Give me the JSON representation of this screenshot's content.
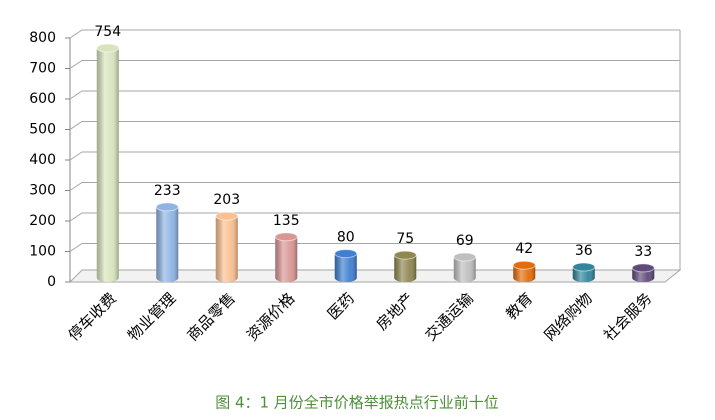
{
  "chart_data": {
    "type": "bar3d",
    "categories": [
      "停车收费",
      "物业管理",
      "商品零售",
      "资源价格",
      "医药",
      "房地产",
      "交通运输",
      "教育",
      "网络购物",
      "社会服务"
    ],
    "values": [
      754,
      233,
      203,
      135,
      80,
      75,
      69,
      42,
      36,
      33
    ],
    "colors": [
      "#d7e4bd",
      "#8eb4e3",
      "#fac090",
      "#d99694",
      "#3f7fd0",
      "#8f8650",
      "#bfbfbf",
      "#e46c0a",
      "#31859c",
      "#604a7b"
    ],
    "ylim": [
      0,
      800
    ],
    "yticks": [
      0,
      100,
      200,
      300,
      400,
      500,
      600,
      700,
      800
    ],
    "grid": true,
    "caption": "图 4：1 月份全市价格举报热点行业前十位"
  }
}
